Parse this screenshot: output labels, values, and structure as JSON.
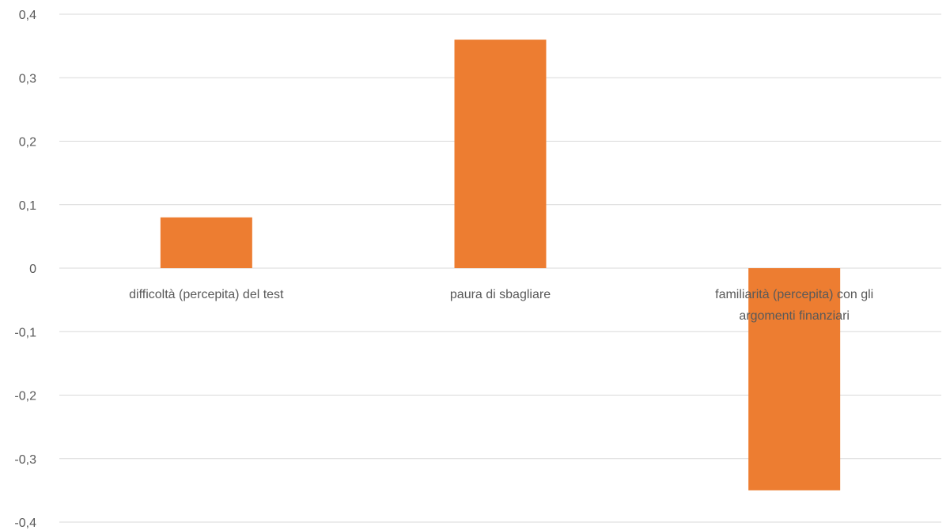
{
  "chart_data": {
    "type": "bar",
    "categories": [
      [
        "difficoltà (percepita) del test"
      ],
      [
        "paura di sbagliare"
      ],
      [
        "familiarità (percepita) con gli",
        "argomenti finanziari"
      ]
    ],
    "values": [
      0.08,
      0.36,
      -0.35
    ],
    "ylim": [
      -0.4,
      0.4
    ],
    "yticks": [
      "0,4",
      "0,3",
      "0,2",
      "0,1",
      "0",
      "-0,1",
      "-0,2",
      "-0,3",
      "-0,4"
    ],
    "tick_values": [
      0.4,
      0.3,
      0.2,
      0.1,
      0,
      -0.1,
      -0.2,
      -0.3,
      -0.4
    ],
    "bar_color": "#ED7D31",
    "grid": true,
    "title": "",
    "xlabel": "",
    "ylabel": ""
  }
}
